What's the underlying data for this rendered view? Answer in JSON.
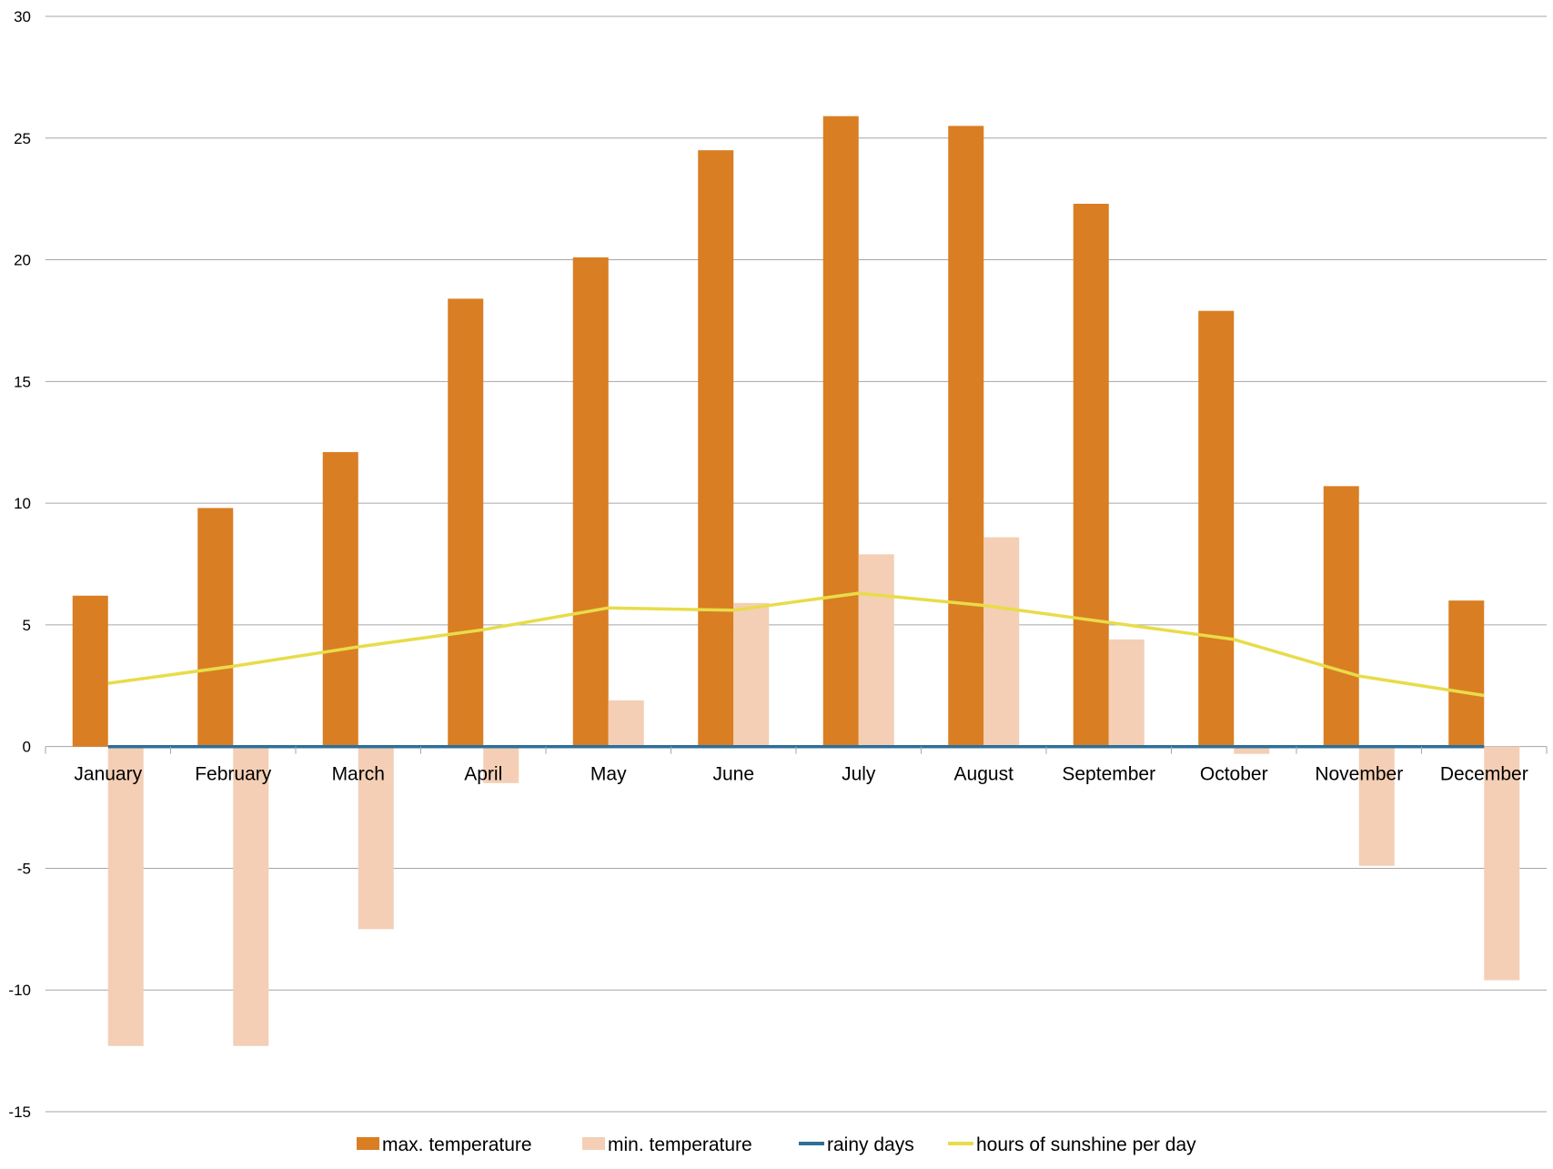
{
  "chart_data": {
    "type": "bar",
    "categories": [
      "January",
      "February",
      "March",
      "April",
      "May",
      "June",
      "July",
      "August",
      "September",
      "October",
      "November",
      "December"
    ],
    "series": [
      {
        "name": "max.  temperature",
        "type": "bar",
        "color": "#d97e22",
        "values": [
          6.2,
          9.8,
          12.1,
          18.4,
          20.1,
          24.5,
          25.9,
          25.5,
          22.3,
          17.9,
          10.7,
          6.0
        ]
      },
      {
        "name": "min. temperature",
        "type": "bar",
        "color": "#f4cfb5",
        "values": [
          -12.3,
          -12.3,
          -7.5,
          -1.5,
          1.9,
          5.9,
          7.9,
          8.6,
          4.4,
          -0.3,
          -4.9,
          -9.6
        ]
      },
      {
        "name": "rainy days",
        "type": "line",
        "color": "#2e6f99",
        "values": [
          0,
          0,
          0,
          0,
          0,
          0,
          0,
          0,
          0,
          0,
          0,
          0
        ]
      },
      {
        "name": "hours of sunshine per day",
        "type": "line",
        "color": "#e8dc4a",
        "values": [
          2.6,
          3.3,
          4.1,
          4.8,
          5.7,
          5.6,
          6.3,
          5.8,
          5.1,
          4.4,
          2.9,
          2.1
        ]
      }
    ],
    "ylim": [
      -15,
      30
    ],
    "yticks": [
      30,
      25,
      20,
      15,
      10,
      5,
      0,
      -5,
      -10,
      -15
    ],
    "grid": true,
    "legend": "bottom",
    "title": "",
    "xlabel": "",
    "ylabel": ""
  }
}
